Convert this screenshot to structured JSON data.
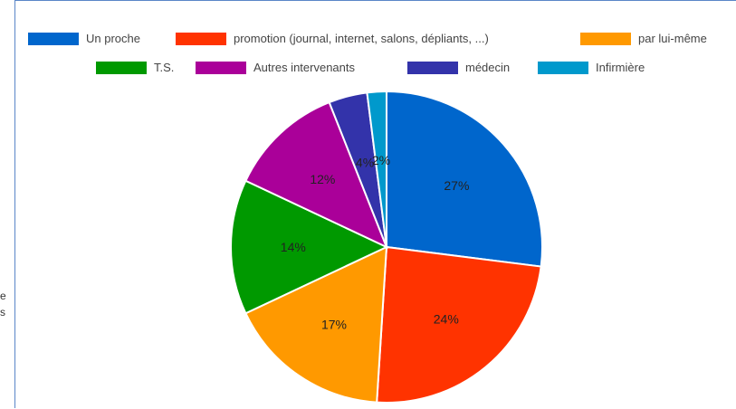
{
  "side_text": [
    "e",
    "s"
  ],
  "chart_data": {
    "type": "pie",
    "legend_position": "top",
    "slices": [
      {
        "name": "Un proche",
        "value": 27,
        "label": "27%",
        "color": "#0066cc"
      },
      {
        "name": "promotion (journal, internet, salons, dépliants, ...)",
        "value": 24,
        "label": "24%",
        "color": "#ff3300"
      },
      {
        "name": "par lui-même",
        "value": 17,
        "label": "17%",
        "color": "#ff9900"
      },
      {
        "name": "T.S.",
        "value": 14,
        "label": "14%",
        "color": "#009900"
      },
      {
        "name": "Autres intervenants",
        "value": 12,
        "label": "12%",
        "color": "#aa0099"
      },
      {
        "name": "médecin",
        "value": 4,
        "label": "4%",
        "color": "#3333aa"
      },
      {
        "name": "Infirmière",
        "value": 2,
        "label": "2%",
        "color": "#0099cc"
      }
    ]
  }
}
